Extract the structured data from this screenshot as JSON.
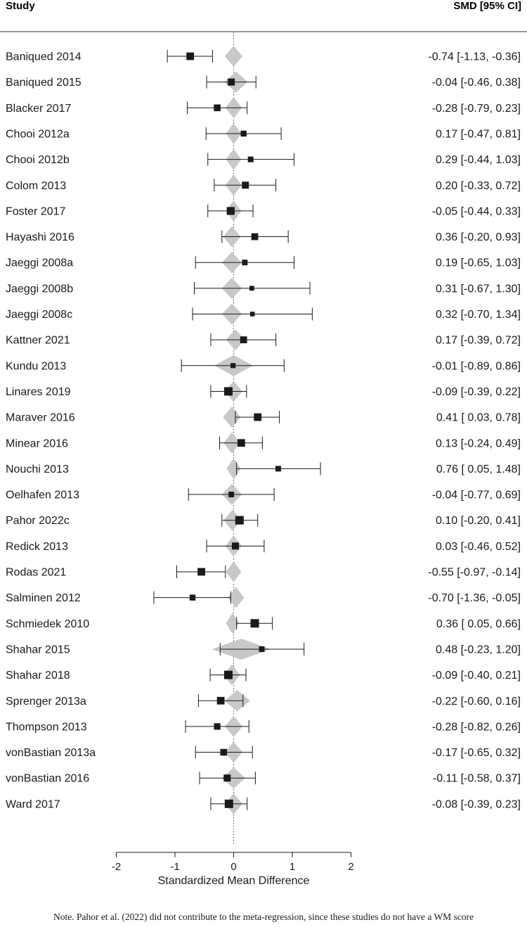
{
  "chart_data": {
    "type": "forest",
    "column_headers": {
      "study": "Study",
      "effect": "SMD [95% CI]"
    },
    "xlabel": "Standardized Mean Difference",
    "xlim": [
      -2,
      2
    ],
    "x_ticks": [
      -2,
      -1,
      0,
      1,
      2
    ],
    "x_tick_labels": [
      "-2",
      "-1",
      "0",
      "1",
      "2"
    ],
    "reference_line": 0,
    "studies": [
      {
        "name": "Baniqued 2014",
        "est": -0.74,
        "lo": -1.13,
        "hi": -0.36,
        "label": "-0.74 [-1.13, -0.36]",
        "pred": 0.0,
        "pred_hw": 0.15,
        "weight": 0.85
      },
      {
        "name": "Baniqued 2015",
        "est": -0.04,
        "lo": -0.46,
        "hi": 0.38,
        "label": "-0.04 [-0.46,  0.38]",
        "pred": 0.04,
        "pred_hw": 0.2,
        "weight": 0.75
      },
      {
        "name": "Blacker 2017",
        "est": -0.28,
        "lo": -0.79,
        "hi": 0.23,
        "label": "-0.28 [-0.79,  0.23]",
        "pred": 0.0,
        "pred_hw": 0.14,
        "weight": 0.7
      },
      {
        "name": "Chooi 2012a",
        "est": 0.17,
        "lo": -0.47,
        "hi": 0.81,
        "label": "0.17 [-0.47,  0.81]",
        "pred": 0.0,
        "pred_hw": 0.13,
        "weight": 0.55
      },
      {
        "name": "Chooi 2012b",
        "est": 0.29,
        "lo": -0.44,
        "hi": 1.03,
        "label": "0.29 [-0.44,  1.03]",
        "pred": 0.0,
        "pred_hw": 0.13,
        "weight": 0.5
      },
      {
        "name": "Colom 2013",
        "est": 0.2,
        "lo": -0.33,
        "hi": 0.72,
        "label": "0.20 [-0.33,  0.72]",
        "pred": 0.0,
        "pred_hw": 0.14,
        "weight": 0.75
      },
      {
        "name": "Foster 2017",
        "est": -0.05,
        "lo": -0.44,
        "hi": 0.33,
        "label": "-0.05 [-0.44,  0.33]",
        "pred": 0.0,
        "pred_hw": 0.13,
        "weight": 0.9
      },
      {
        "name": "Hayashi 2016",
        "est": 0.36,
        "lo": -0.2,
        "hi": 0.93,
        "label": "0.36 [-0.20,  0.93]",
        "pred": -0.03,
        "pred_hw": 0.15,
        "weight": 0.72
      },
      {
        "name": "Jaeggi 2008a",
        "est": 0.19,
        "lo": -0.65,
        "hi": 1.03,
        "label": "0.19 [-0.65,  1.03]",
        "pred": -0.03,
        "pred_hw": 0.17,
        "weight": 0.5
      },
      {
        "name": "Jaeggi 2008b",
        "est": 0.31,
        "lo": -0.67,
        "hi": 1.3,
        "label": "0.31 [-0.67,  1.30]",
        "pred": -0.03,
        "pred_hw": 0.17,
        "weight": 0.35
      },
      {
        "name": "Jaeggi 2008c",
        "est": 0.32,
        "lo": -0.7,
        "hi": 1.34,
        "label": "0.32 [-0.70,  1.34]",
        "pred": -0.03,
        "pred_hw": 0.17,
        "weight": 0.33
      },
      {
        "name": "Kattner 2021",
        "est": 0.17,
        "lo": -0.39,
        "hi": 0.72,
        "label": "0.17 [-0.39,  0.72]",
        "pred": 0.03,
        "pred_hw": 0.16,
        "weight": 0.72
      },
      {
        "name": "Kundu 2013",
        "est": -0.01,
        "lo": -0.89,
        "hi": 0.86,
        "label": "-0.01 [-0.89,  0.86]",
        "pred": 0.0,
        "pred_hw": 0.33,
        "weight": 0.4
      },
      {
        "name": "Linares 2019",
        "est": -0.09,
        "lo": -0.39,
        "hi": 0.22,
        "label": "-0.09 [-0.39,  0.22]",
        "pred": 0.0,
        "pred_hw": 0.15,
        "weight": 1.0
      },
      {
        "name": "Maraver 2016",
        "est": 0.41,
        "lo": 0.03,
        "hi": 0.78,
        "label": "0.41 [ 0.03,  0.78]",
        "pred": -0.03,
        "pred_hw": 0.15,
        "weight": 0.85
      },
      {
        "name": "Minear 2016",
        "est": 0.13,
        "lo": -0.24,
        "hi": 0.49,
        "label": "0.13 [-0.24,  0.49]",
        "pred": -0.03,
        "pred_hw": 0.14,
        "weight": 0.85
      },
      {
        "name": "Nouchi 2013",
        "est": 0.76,
        "lo": 0.05,
        "hi": 1.48,
        "label": "0.76 [ 0.05,  1.48]",
        "pred": 0.0,
        "pred_hw": 0.12,
        "weight": 0.5
      },
      {
        "name": "Oelhafen 2013",
        "est": -0.04,
        "lo": -0.77,
        "hi": 0.69,
        "label": "-0.04 [-0.77,  0.69]",
        "pred": -0.03,
        "pred_hw": 0.17,
        "weight": 0.5
      },
      {
        "name": "Pahor 2022c",
        "est": 0.1,
        "lo": -0.2,
        "hi": 0.41,
        "label": "0.10 [-0.20,  0.41]",
        "pred": -0.02,
        "pred_hw": 0.15,
        "weight": 1.0
      },
      {
        "name": "Redick 2013",
        "est": 0.03,
        "lo": -0.46,
        "hi": 0.52,
        "label": "0.03 [-0.46,  0.52]",
        "pred": 0.0,
        "pred_hw": 0.14,
        "weight": 0.75
      },
      {
        "name": "Rodas 2021",
        "est": -0.55,
        "lo": -0.97,
        "hi": -0.14,
        "label": "-0.55 [-0.97, -0.14]",
        "pred": 0.0,
        "pred_hw": 0.13,
        "weight": 0.85
      },
      {
        "name": "Salminen 2012",
        "est": -0.7,
        "lo": -1.36,
        "hi": -0.05,
        "label": "-0.70 [-1.36, -0.05]",
        "pred": 0.04,
        "pred_hw": 0.14,
        "weight": 0.55
      },
      {
        "name": "Schmiedek 2010",
        "est": 0.36,
        "lo": 0.05,
        "hi": 0.66,
        "label": "0.36 [ 0.05,  0.66]",
        "pred": -0.02,
        "pred_hw": 0.11,
        "weight": 1.0
      },
      {
        "name": "Shahar 2015",
        "est": 0.48,
        "lo": -0.23,
        "hi": 1.2,
        "label": "0.48 [-0.23,  1.20]",
        "pred": 0.13,
        "pred_hw": 0.5,
        "weight": 0.5
      },
      {
        "name": "Shahar 2018",
        "est": -0.09,
        "lo": -0.4,
        "hi": 0.21,
        "label": "-0.09 [-0.40,  0.21]",
        "pred": -0.03,
        "pred_hw": 0.14,
        "weight": 1.0
      },
      {
        "name": "Sprenger 2013a",
        "est": -0.22,
        "lo": -0.6,
        "hi": 0.16,
        "label": "-0.22 [-0.60,  0.16]",
        "pred": 0.06,
        "pred_hw": 0.22,
        "weight": 0.85
      },
      {
        "name": "Thompson 2013",
        "est": -0.28,
        "lo": -0.82,
        "hi": 0.26,
        "label": "-0.28 [-0.82,  0.26]",
        "pred": 0.0,
        "pred_hw": 0.15,
        "weight": 0.65
      },
      {
        "name": "vonBastian 2013a",
        "est": -0.17,
        "lo": -0.65,
        "hi": 0.32,
        "label": "-0.17 [-0.65,  0.32]",
        "pred": 0.0,
        "pred_hw": 0.15,
        "weight": 0.7
      },
      {
        "name": "vonBastian 2016",
        "est": -0.11,
        "lo": -0.58,
        "hi": 0.37,
        "label": "-0.11 [-0.58,  0.37]",
        "pred": 0.0,
        "pred_hw": 0.2,
        "weight": 0.75
      },
      {
        "name": "Ward 2017",
        "est": -0.08,
        "lo": -0.39,
        "hi": 0.23,
        "label": "-0.08 [-0.39,  0.23]",
        "pred": 0.0,
        "pred_hw": 0.15,
        "weight": 1.0
      }
    ]
  },
  "note": "Note. Pahor et al. (2022) did not contribute to the meta-regression, since these studies do not have a WM score"
}
